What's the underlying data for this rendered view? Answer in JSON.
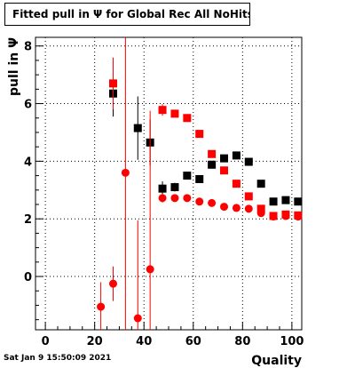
{
  "title": "Fitted pull in  Ψ  for Global Rec All NoHits",
  "timestamp": "Sat Jan  9 15:50:09 2021",
  "chart_data": {
    "type": "scatter",
    "title": "Fitted pull in  Ψ  for Global Rec All NoHits",
    "xlabel": "Quality",
    "ylabel": "pull in  Ψ",
    "xlim": [
      -4,
      104
    ],
    "ylim": [
      -1.85,
      8.3
    ],
    "xticks": [
      0,
      20,
      40,
      60,
      80,
      100
    ],
    "yticks": [
      0,
      2,
      4,
      6,
      8
    ],
    "grid": true,
    "colors": {
      "black_series": "#000000",
      "red_series": "#ff0000"
    },
    "series": [
      {
        "color": "#000000",
        "marker": "square",
        "points": [
          {
            "x": 27.5,
            "y": 6.35,
            "err": 0.8
          },
          {
            "x": 37.5,
            "y": 5.15,
            "err": 1.1
          },
          {
            "x": 42.5,
            "y": 4.65,
            "err": 0.8
          },
          {
            "x": 47.5,
            "y": 3.05,
            "err": 0.25
          },
          {
            "x": 52.5,
            "y": 3.1,
            "err": 0.15
          },
          {
            "x": 57.5,
            "y": 3.5,
            "err": 0.12
          },
          {
            "x": 62.5,
            "y": 3.38,
            "err": 0.1
          },
          {
            "x": 67.5,
            "y": 3.88,
            "err": 0.1
          },
          {
            "x": 72.5,
            "y": 4.1,
            "err": 0.1
          },
          {
            "x": 77.5,
            "y": 4.2,
            "err": 0.1
          },
          {
            "x": 82.5,
            "y": 3.98,
            "err": 0.08
          },
          {
            "x": 87.5,
            "y": 3.22,
            "err": 0.08
          },
          {
            "x": 92.5,
            "y": 2.6,
            "err": 0.06
          },
          {
            "x": 97.5,
            "y": 2.65,
            "err": 0.06
          },
          {
            "x": 102.5,
            "y": 2.6,
            "err": 0.06
          }
        ]
      },
      {
        "color": "#ff0000",
        "marker": "square",
        "points": [
          {
            "x": 27.5,
            "y": 6.7,
            "err": 0.9
          },
          {
            "x": 47.5,
            "y": 5.78,
            "err": 0.2
          },
          {
            "x": 52.5,
            "y": 5.65,
            "err": 0.12
          },
          {
            "x": 57.5,
            "y": 5.5,
            "err": 0.1
          },
          {
            "x": 62.5,
            "y": 4.95,
            "err": 0.1
          },
          {
            "x": 67.5,
            "y": 4.25,
            "err": 0.08
          },
          {
            "x": 72.5,
            "y": 3.68,
            "err": 0.08
          },
          {
            "x": 77.5,
            "y": 3.22,
            "err": 0.08
          },
          {
            "x": 82.5,
            "y": 2.78,
            "err": 0.06
          },
          {
            "x": 87.5,
            "y": 2.35,
            "err": 0.06
          },
          {
            "x": 92.5,
            "y": 2.1,
            "err": 0.05
          },
          {
            "x": 97.5,
            "y": 2.15,
            "err": 0.05
          },
          {
            "x": 102.5,
            "y": 2.12,
            "err": 0.05
          }
        ]
      },
      {
        "color": "#ff0000",
        "marker": "circle",
        "points": [
          {
            "x": 22.5,
            "y": -1.05,
            "err": 0.85
          },
          {
            "x": 27.5,
            "y": -0.25,
            "err": 0.6
          },
          {
            "x": 32.5,
            "y": 3.6,
            "err": 10
          },
          {
            "x": 37.5,
            "y": -1.45,
            "err": 3.4
          },
          {
            "x": 42.5,
            "y": 0.25,
            "err": 5.5
          },
          {
            "x": 47.5,
            "y": 2.72,
            "err": 0.15
          },
          {
            "x": 52.5,
            "y": 2.72,
            "err": 0.1
          },
          {
            "x": 57.5,
            "y": 2.72,
            "err": 0.08
          },
          {
            "x": 62.5,
            "y": 2.6,
            "err": 0.06
          },
          {
            "x": 67.5,
            "y": 2.55,
            "err": 0.06
          },
          {
            "x": 72.5,
            "y": 2.42,
            "err": 0.05
          },
          {
            "x": 77.5,
            "y": 2.38,
            "err": 0.05
          },
          {
            "x": 82.5,
            "y": 2.35,
            "err": 0.05
          },
          {
            "x": 87.5,
            "y": 2.2,
            "err": 0.05
          },
          {
            "x": 92.5,
            "y": 2.08,
            "err": 0.05
          },
          {
            "x": 97.5,
            "y": 2.1,
            "err": 0.05
          },
          {
            "x": 102.5,
            "y": 2.08,
            "err": 0.05
          }
        ]
      }
    ]
  }
}
